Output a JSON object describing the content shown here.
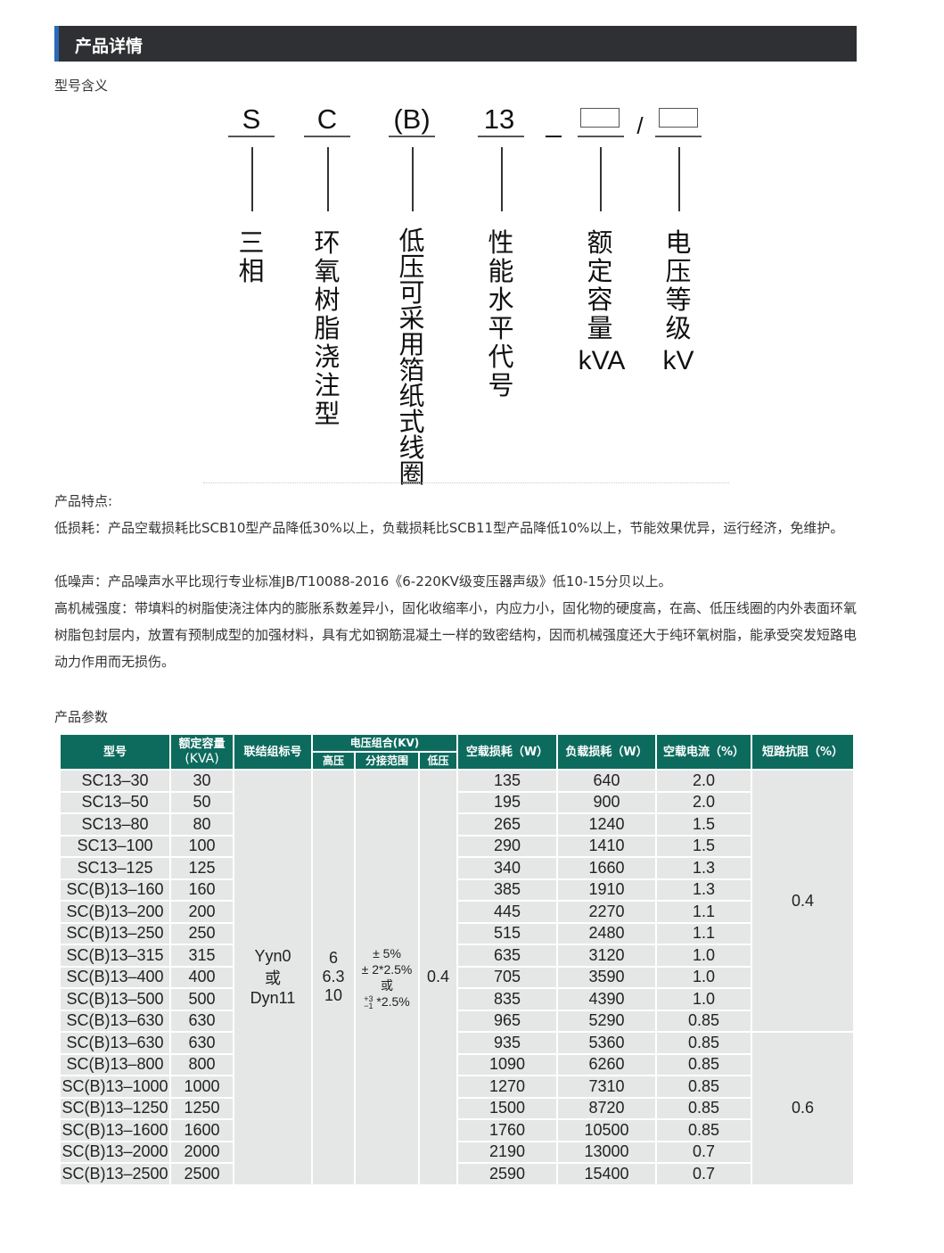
{
  "section_title": "产品详情",
  "model_meaning_label": "型号含义",
  "diagram": {
    "symbols": [
      "S",
      "C",
      "(B)",
      "13"
    ],
    "dash": "_",
    "slash": "/",
    "labels": [
      "三相",
      "环氧树脂浇注型",
      "低压可采用箔纸式线圈",
      "性能水平代号",
      "额定容量",
      "电压等级"
    ],
    "units": [
      "kVA",
      "kV"
    ]
  },
  "features": {
    "title": "产品特点:",
    "items": [
      "低损耗：产品空载损耗比SCB10型产品降低30%以上，负载损耗比SCB11型产品降低10%以上，节能效果优异，运行经济，免维护。",
      "低噪声：产品噪声水平比现行专业标准JB/T10088-2016《6-220KV级变压器声级》低10-15分贝以上。",
      "高机械强度：带填料的树脂使浇注体内的膨胀系数差异小，固化收缩率小，内应力小，固化物的硬度高，在高、低压线圈的内外表面环氧树脂包封层内，放置有预制成型的加强材料，具有尤如钢筋混凝土一样的致密结构，因而机械强度还大于纯环氧树脂，能承受突发短路电动力作用而无损伤。"
    ]
  },
  "params_label": "产品参数",
  "table": {
    "headers": {
      "model": "型号",
      "capacity": "额定容量",
      "capacity_unit": "(KVA)",
      "connection": "联结组标号",
      "voltage": "电压组合(KV)",
      "hv": "高压",
      "tap": "分接范围",
      "lv": "低压",
      "no_load_loss": "空载损耗（W）",
      "load_loss": "负载损耗（W）",
      "no_load_current": "空载电流（%）",
      "impedance": "短路抗阻（%）"
    },
    "connection": [
      "Yyn0",
      "或",
      "Dyn11"
    ],
    "hv": [
      "6",
      "6.3",
      "10"
    ],
    "tap": {
      "line1": "± 5%",
      "line2": "± 2*2.5%",
      "line3": "或",
      "sup": "+3",
      "sub": "−1",
      "line4": "*2.5%"
    },
    "lv": "0.4",
    "impedance": [
      "0.4",
      "0.6"
    ],
    "rows": [
      [
        "SC13–30",
        "30",
        "135",
        "640",
        "2.0"
      ],
      [
        "SC13–50",
        "50",
        "195",
        "900",
        "2.0"
      ],
      [
        "SC13–80",
        "80",
        "265",
        "1240",
        "1.5"
      ],
      [
        "SC13–100",
        "100",
        "290",
        "1410",
        "1.5"
      ],
      [
        "SC13–125",
        "125",
        "340",
        "1660",
        "1.3"
      ],
      [
        "SC(B)13–160",
        "160",
        "385",
        "1910",
        "1.3"
      ],
      [
        "SC(B)13–200",
        "200",
        "445",
        "2270",
        "1.1"
      ],
      [
        "SC(B)13–250",
        "250",
        "515",
        "2480",
        "1.1"
      ],
      [
        "SC(B)13–315",
        "315",
        "635",
        "3120",
        "1.0"
      ],
      [
        "SC(B)13–400",
        "400",
        "705",
        "3590",
        "1.0"
      ],
      [
        "SC(B)13–500",
        "500",
        "835",
        "4390",
        "1.0"
      ],
      [
        "SC(B)13–630",
        "630",
        "965",
        "5290",
        "0.85"
      ],
      [
        "SC(B)13–630",
        "630",
        "935",
        "5360",
        "0.85"
      ],
      [
        "SC(B)13–800",
        "800",
        "1090",
        "6260",
        "0.85"
      ],
      [
        "SC(B)13–1000",
        "1000",
        "1270",
        "7310",
        "0.85"
      ],
      [
        "SC(B)13–1250",
        "1250",
        "1500",
        "8720",
        "0.85"
      ],
      [
        "SC(B)13–1600",
        "1600",
        "1760",
        "10500",
        "0.85"
      ],
      [
        "SC(B)13–2000",
        "2000",
        "2190",
        "13000",
        "0.7"
      ],
      [
        "SC(B)13–2500",
        "2500",
        "2590",
        "15400",
        "0.7"
      ]
    ]
  },
  "colors": {
    "header_bar": "#2f3033",
    "header_accent": "#2a6ab7",
    "table_header": "#0d6b5e",
    "table_cell": "#e5e6e6"
  }
}
